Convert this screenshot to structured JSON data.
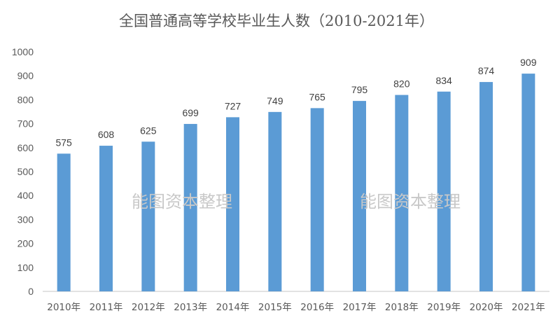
{
  "chart_data": {
    "type": "bar",
    "title": "全国普通高等学校毕业生人数（2010-2021年）",
    "categories": [
      "2010年",
      "2011年",
      "2012年",
      "2013年",
      "2014年",
      "2015年",
      "2016年",
      "2017年",
      "2018年",
      "2019年",
      "2020年",
      "2021年"
    ],
    "values": [
      575,
      608,
      625,
      699,
      727,
      749,
      765,
      795,
      820,
      834,
      874,
      909
    ],
    "ylim": [
      0,
      1000
    ],
    "yticks": [
      0,
      100,
      200,
      300,
      400,
      500,
      600,
      700,
      800,
      900,
      1000
    ],
    "xlabel": "",
    "ylabel": "",
    "grid": false,
    "bar_color": "#5b9bd5"
  },
  "watermarks": [
    "能图资本整理",
    "能图资本整理"
  ]
}
